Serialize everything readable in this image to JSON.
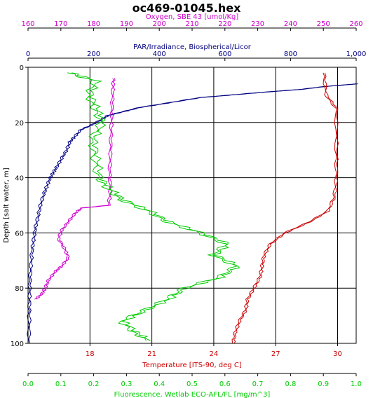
{
  "chart_data": {
    "type": "line",
    "title": "oc469-01045.hex",
    "grid": true,
    "y_axis": {
      "label": "Depth [salt water, m]",
      "range": [
        0,
        100
      ],
      "inverted": true,
      "ticks": [
        "0",
        "20",
        "40",
        "60",
        "80",
        "100"
      ]
    },
    "x_axes": [
      {
        "id": "oxygen",
        "label": "Oxygen, SBE 43 [umol/Kg]",
        "position": "top-outer",
        "range": [
          160,
          260
        ],
        "color": "#cc00cc",
        "ticks": [
          "160",
          "170",
          "180",
          "190",
          "200",
          "210",
          "220",
          "230",
          "240",
          "250",
          "260"
        ]
      },
      {
        "id": "par",
        "label": "PAR/Irradiance, Biospherical/Licor",
        "position": "top-inner",
        "range": [
          0,
          1000
        ],
        "color": "#000080",
        "ticks": [
          "0",
          "200",
          "400",
          "600",
          "800",
          "1,000"
        ]
      },
      {
        "id": "temperature",
        "label": "Temperature [ITS-90, deg C]",
        "position": "bottom-inner",
        "range": [
          15.0,
          30.9
        ],
        "color": "#cc0000",
        "ticks": [
          "18",
          "21",
          "24",
          "27",
          "30"
        ]
      },
      {
        "id": "fluorescence",
        "label": "Fluorescence, Wetlab ECO-AFL/FL [mg/m^3]",
        "position": "bottom-outer",
        "range": [
          0,
          1.0
        ],
        "color": "#00cc00",
        "ticks": [
          "0.0",
          "0.1",
          "0.2",
          "0.3",
          "0.4",
          "0.5",
          "0.6",
          "0.7",
          "0.8",
          "0.9",
          "1.0"
        ]
      }
    ],
    "series": [
      {
        "axis": "par",
        "color": "#000080",
        "points": [
          [
            1000,
            6
          ],
          [
            900,
            7
          ],
          [
            830,
            8
          ],
          [
            720,
            9
          ],
          [
            620,
            10
          ],
          [
            520,
            11
          ],
          [
            420,
            13
          ],
          [
            340,
            14.5
          ],
          [
            290,
            16
          ],
          [
            240,
            17.5
          ],
          [
            220,
            19
          ],
          [
            190,
            21
          ],
          [
            160,
            22.5
          ],
          [
            140,
            25
          ],
          [
            125,
            27
          ],
          [
            115,
            30
          ],
          [
            100,
            33
          ],
          [
            85,
            36
          ],
          [
            75,
            38
          ],
          [
            65,
            40
          ],
          [
            55,
            43
          ],
          [
            45,
            46
          ],
          [
            35,
            50
          ],
          [
            28,
            54
          ],
          [
            20,
            58
          ],
          [
            15,
            62
          ],
          [
            10,
            66
          ],
          [
            6,
            72
          ],
          [
            3,
            78
          ],
          [
            2,
            84
          ],
          [
            1,
            90
          ],
          [
            0,
            100
          ]
        ]
      },
      {
        "axis": "oxygen",
        "color": "#cc00cc",
        "points": [
          [
            185.8,
            4
          ],
          [
            185.6,
            8
          ],
          [
            185.3,
            15
          ],
          [
            185.1,
            22
          ],
          [
            184.9,
            30
          ],
          [
            184.6,
            38
          ],
          [
            184.8,
            45
          ],
          [
            184.3,
            50
          ],
          [
            176,
            51
          ],
          [
            174,
            53
          ],
          [
            172,
            56
          ],
          [
            170,
            59
          ],
          [
            169,
            62
          ],
          [
            171,
            66
          ],
          [
            172,
            69
          ],
          [
            170,
            72
          ],
          [
            168,
            74
          ],
          [
            166,
            77
          ],
          [
            165,
            80
          ],
          [
            164,
            82
          ],
          [
            162,
            84
          ]
        ]
      },
      {
        "axis": "temperature",
        "color": "#cc0000",
        "points": [
          [
            29.3,
            2
          ],
          [
            29.4,
            10
          ],
          [
            29.9,
            15
          ],
          [
            29.9,
            30
          ],
          [
            29.9,
            40
          ],
          [
            29.8,
            47
          ],
          [
            29.5,
            52
          ],
          [
            28.6,
            56
          ],
          [
            27.4,
            60
          ],
          [
            26.7,
            64
          ],
          [
            26.4,
            68
          ],
          [
            26.3,
            72
          ],
          [
            26.2,
            76
          ],
          [
            25.9,
            80
          ],
          [
            25.6,
            84
          ],
          [
            25.5,
            88
          ],
          [
            25.2,
            92
          ],
          [
            25.0,
            96
          ],
          [
            24.9,
            100
          ]
        ]
      },
      {
        "axis": "fluorescence",
        "color": "#00cc00",
        "points": [
          [
            0.12,
            2
          ],
          [
            0.2,
            5
          ],
          [
            0.18,
            10
          ],
          [
            0.2,
            15
          ],
          [
            0.22,
            20
          ],
          [
            0.19,
            26
          ],
          [
            0.2,
            33
          ],
          [
            0.21,
            40
          ],
          [
            0.24,
            44
          ],
          [
            0.28,
            48
          ],
          [
            0.36,
            52
          ],
          [
            0.42,
            56
          ],
          [
            0.52,
            60
          ],
          [
            0.6,
            64
          ],
          [
            0.56,
            68
          ],
          [
            0.63,
            72
          ],
          [
            0.58,
            76
          ],
          [
            0.47,
            80
          ],
          [
            0.42,
            84
          ],
          [
            0.35,
            88
          ],
          [
            0.28,
            92
          ],
          [
            0.32,
            96
          ],
          [
            0.36,
            99
          ]
        ]
      }
    ]
  }
}
